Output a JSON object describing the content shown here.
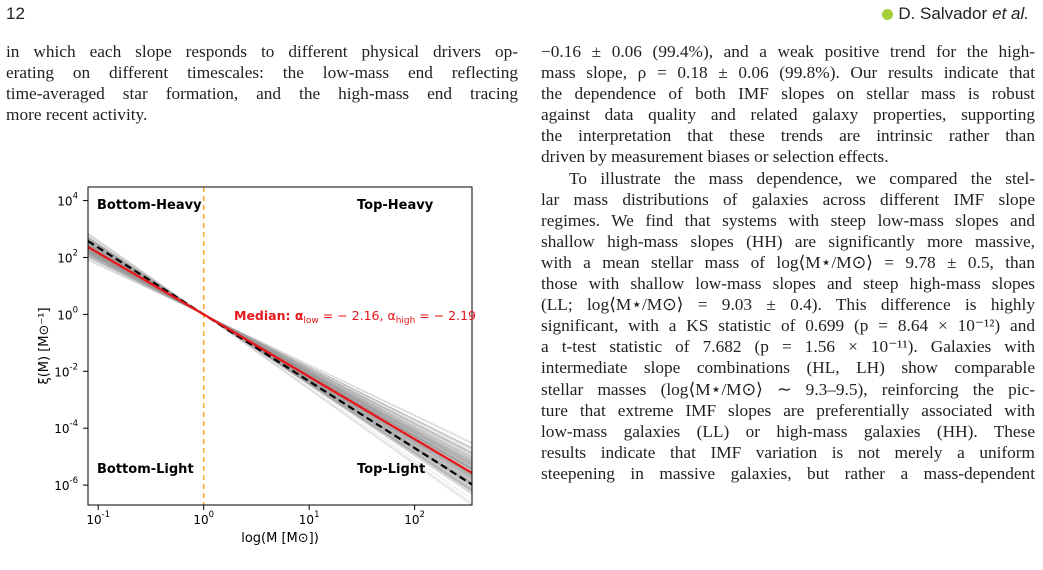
{
  "header": {
    "page_number": "12",
    "author": "D. Salvador",
    "author_suffix": "et al.",
    "orcid_icon": "orcid-icon",
    "orcid_color": "#a6ce39"
  },
  "left_column": {
    "lines": [
      "in which each slope responds to different physical drivers op-",
      "erating on different timescales: the low-mass end reflecting",
      "time-averaged star formation, and the high-mass end tracing",
      "more recent activity."
    ]
  },
  "right_column": {
    "lines": [
      "−0.16 ± 0.06 (99.4%), and a weak positive trend for the high-",
      "mass slope, ρ = 0.18 ± 0.06 (99.8%). Our results indicate that",
      "the dependence of both IMF slopes on stellar mass is robust",
      "against data quality and related galaxy properties, supporting",
      "the interpretation that these trends are intrinsic rather than",
      "driven by measurement biases or selection effects.",
      "To illustrate the mass dependence, we compared the stel-",
      "lar mass distributions of galaxies across different IMF slope",
      "regimes. We find that systems with steep low-mass slopes and",
      "shallow high-mass slopes (HH) are significantly more massive,",
      "with a mean stellar mass of log⟨M⋆/M⊙⟩ = 9.78 ± 0.5, than",
      "those with shallow low-mass slopes and steep high-mass slopes",
      "(LL; log⟨M⋆/M⊙⟩ = 9.03 ± 0.4). This difference is highly",
      "significant, with a KS statistic of 0.699 (p = 8.64 × 10⁻¹²) and",
      "a t-test statistic of 7.682 (p = 1.56 × 10⁻¹¹). Galaxies with",
      "intermediate slope combinations (HL, LH) show comparable",
      "stellar masses (log⟨M⋆/M⊙⟩ ∼ 9.3–9.5), reinforcing the pic-",
      "ture that extreme IMF slopes are preferentially associated with",
      "low-mass galaxies (LL) or high-mass galaxies (HH). These",
      "results indicate that IMF variation is not merely a uniform",
      "steepening in massive galaxies, but rather a mass-dependent"
    ]
  },
  "figure": {
    "ylabel": "ξ(M) [M⊙⁻¹]",
    "xlabel": "log(M [M⊙])",
    "quadrants": {
      "top_left": "Bottom-Heavy",
      "top_right": "Top-Heavy",
      "bottom_left": "Bottom-Light",
      "bottom_right": "Top-Light"
    },
    "median_label": "Median: α",
    "median_low_sub": "low",
    "median_low_val": " = − 2.16, α",
    "median_high_sub": "high",
    "median_high_val": " = − 2.19",
    "y_ticks": [
      "4",
      "2",
      "0",
      "-2",
      "-4",
      "-6"
    ],
    "x_ticks": [
      "-1",
      "0",
      "1",
      "2"
    ],
    "tick_base": "10",
    "colors": {
      "median": "#e8161b",
      "pivot": "#f5a623",
      "samples": "#9a9a9a",
      "reference": "#000000"
    }
  },
  "chart_data": {
    "type": "line",
    "x_scale": "log",
    "y_scale": "log",
    "xlim": [
      0.08,
      350
    ],
    "ylim": [
      2e-07,
      30000
    ],
    "pivot_mass": 1,
    "pivot_xi": 1,
    "median_slopes": {
      "alpha_low": -2.16,
      "alpha_high": -2.19
    },
    "reference_slope": -2.35,
    "sample_lines": 180,
    "grid": false
  }
}
